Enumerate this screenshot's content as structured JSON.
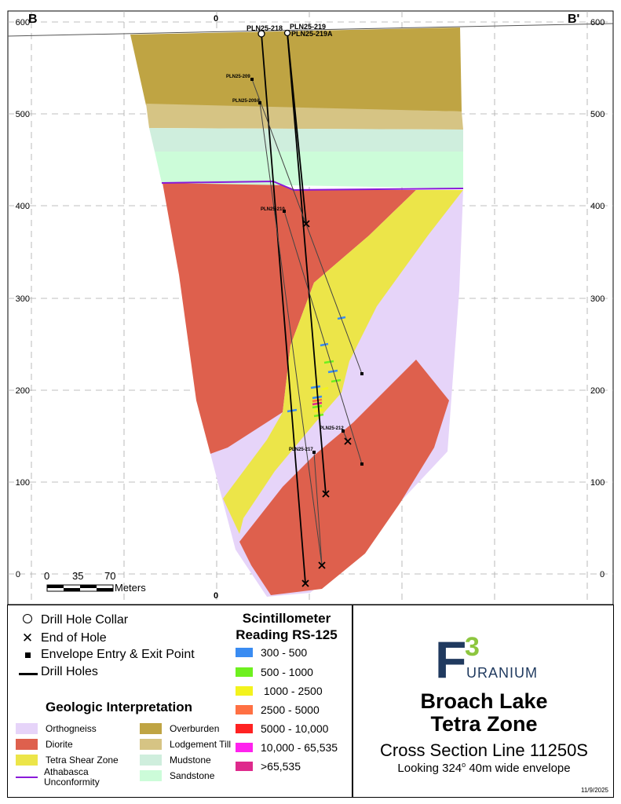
{
  "section": {
    "left_label": "B",
    "right_label": "B'",
    "top_easting_label": "0",
    "bottom_easting_label": "0",
    "elevation_ticks": [
      "600",
      "500",
      "400",
      "300",
      "200",
      "100",
      "0"
    ],
    "scale_bar": {
      "ticks": [
        "0",
        "35",
        "70"
      ],
      "unit": "Meters"
    },
    "drill_holes": [
      "PLN25-218",
      "PLN25-219",
      "PLN25-219A",
      "PLN25-209",
      "PLN25-209A",
      "PLN25-210",
      "PLN25-212",
      "PLN25-217"
    ]
  },
  "symbols_legend": [
    {
      "icon": "circle-icon",
      "label": "Drill Hole Collar"
    },
    {
      "icon": "x-icon",
      "label": "End of Hole"
    },
    {
      "icon": "square-icon",
      "label": "Envelope Entry & Exit Point"
    },
    {
      "icon": "line-icon",
      "label": "Drill Holes"
    }
  ],
  "geologic_legend": {
    "title": "Geologic Interpretation",
    "left_items": [
      {
        "label": "Orthogneiss",
        "color": "#e6d4f9"
      },
      {
        "label": "Diorite",
        "color": "#de604d"
      },
      {
        "label": "Tetra Shear Zone",
        "color": "#ece549"
      },
      {
        "label": "Athabasca Unconformity",
        "color": "#8a1ad9"
      }
    ],
    "right_items": [
      {
        "label": "Overburden",
        "color": "#bfa443"
      },
      {
        "label": "Lodgement Till",
        "color": "#d6c484"
      },
      {
        "label": "Mudstone",
        "color": "#cfeedd"
      },
      {
        "label": "Sandstone",
        "color": "#ccfcd9"
      }
    ]
  },
  "scintillometer_legend": {
    "title_line1": "Scintillometer",
    "title_line2": "Reading RS-125",
    "items": [
      {
        "label": "300 - 500",
        "color": "#3a8cf2"
      },
      {
        "label": "500 - 1000",
        "color": "#6ef01f"
      },
      {
        "label": " 1000 - 2500",
        "color": "#f3f31d"
      },
      {
        "label": "2500 - 5000",
        "color": "#ff7043"
      },
      {
        "label": "5000 - 10,000",
        "color": "#ff2222"
      },
      {
        "label": "10,000 - 65,535",
        "color": "#ff22ee"
      },
      {
        "label": ">65,535",
        "color": "#de2a8c"
      }
    ]
  },
  "logo": {
    "mark": "F",
    "superscript": "3",
    "word": "URANIUM",
    "brand_color": "#203a5f",
    "accent_color": "#8dc63f"
  },
  "title_block": {
    "project_line1": "Broach Lake",
    "project_line2": "Tetra Zone",
    "section_line": "Cross Section Line 11250S",
    "looking_prefix": "Looking 324",
    "looking_degree": "o",
    "looking_suffix": " 40m wide envelope",
    "date": "11/9/2025"
  }
}
